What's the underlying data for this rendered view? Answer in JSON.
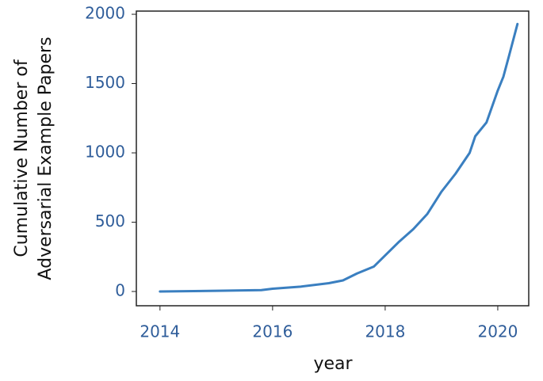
{
  "chart_data": {
    "type": "line",
    "xlabel": "year",
    "ylabel": [
      "Cumulative Number of",
      "Adversarial Example Papers"
    ],
    "x": [
      2014,
      2015,
      2015.8,
      2016,
      2016.5,
      2017,
      2017.25,
      2017.5,
      2017.8,
      2018,
      2018.25,
      2018.5,
      2018.75,
      2019,
      2019.25,
      2019.5,
      2019.6,
      2019.8,
      2020,
      2020.1,
      2020.2,
      2020.35
    ],
    "values": [
      0,
      5,
      10,
      20,
      35,
      60,
      80,
      130,
      180,
      260,
      360,
      450,
      560,
      720,
      850,
      1000,
      1120,
      1220,
      1450,
      1550,
      1700,
      1930
    ],
    "color": "#3a7fc0",
    "xlim": [
      2013.58,
      2020.55
    ],
    "ylim": [
      -103,
      2023
    ],
    "xticks": [
      2014,
      2016,
      2018,
      2020
    ],
    "yticks": [
      0,
      500,
      1000,
      1500,
      2000
    ],
    "tick_color": "#2f5d9a",
    "grid": false
  }
}
